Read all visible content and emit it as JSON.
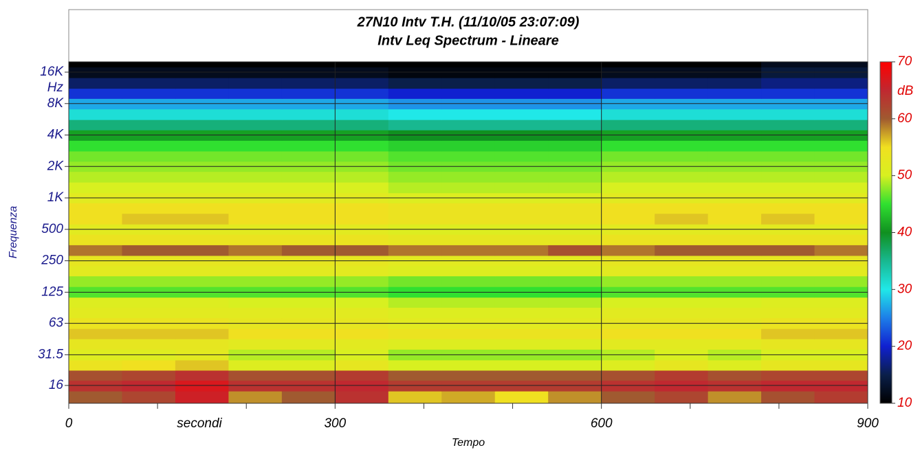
{
  "chart_data": {
    "type": "heatmap",
    "title": "27N10 Intv T.H. (11/10/05 23:07:09)",
    "subtitle": "Intv Leq Spectrum - Lineare",
    "x_label": "Tempo",
    "x_unit": "secondi",
    "y_label": "Frequenza",
    "y_unit": "Hz",
    "xlim": [
      0,
      900
    ],
    "xticks": [
      0,
      300,
      600,
      900
    ],
    "xminor": [
      100,
      200,
      400,
      500,
      700,
      800
    ],
    "xgrid": [
      300,
      600
    ],
    "ylim": [
      10.8,
      20080
    ],
    "log_y": true,
    "yticks": [
      {
        "value": 16000,
        "label": "16K"
      },
      {
        "value": 8000,
        "label": "8K"
      },
      {
        "value": 4000,
        "label": "4K"
      },
      {
        "value": 2000,
        "label": "2K"
      },
      {
        "value": 1000,
        "label": "1K"
      },
      500,
      250,
      125,
      63,
      31.5,
      16
    ],
    "grid": true,
    "x": [
      0,
      60,
      120,
      180,
      240,
      300,
      360,
      420,
      480,
      540,
      600,
      660,
      720,
      780,
      840
    ],
    "y": [
      12.5,
      16,
      20,
      25,
      31.5,
      40,
      50,
      63,
      80,
      100,
      125,
      160,
      200,
      250,
      315,
      400,
      500,
      630,
      800,
      1000,
      1250,
      1600,
      2000,
      2500,
      3150,
      4000,
      5000,
      6300,
      8000,
      10000,
      12500,
      16000,
      20000
    ],
    "z": [
      [
        60,
        62,
        66,
        58,
        60,
        64,
        56,
        57,
        55,
        58,
        60,
        62,
        58,
        61,
        63
      ],
      [
        64,
        65,
        67,
        64,
        64,
        65,
        63,
        63,
        63,
        63,
        64,
        65,
        64,
        65,
        65
      ],
      [
        61,
        62,
        64,
        61,
        61,
        63,
        60,
        60,
        60,
        60,
        61,
        63,
        61,
        62,
        62
      ],
      [
        54,
        55,
        56,
        51,
        51,
        53,
        50,
        50,
        50,
        50,
        51,
        53,
        51,
        53,
        53
      ],
      [
        51,
        51,
        52,
        49,
        49,
        50,
        48,
        48,
        48,
        48,
        49,
        50,
        49,
        50,
        50
      ],
      [
        53,
        53,
        53,
        52,
        52,
        52,
        51,
        51,
        51,
        51,
        52,
        52,
        52,
        53,
        53
      ],
      [
        56,
        56,
        56,
        55,
        55,
        55,
        54,
        54,
        54,
        54,
        55,
        55,
        55,
        56,
        56
      ],
      [
        54,
        54,
        54,
        53,
        53,
        53,
        52,
        52,
        52,
        52,
        53,
        53,
        53,
        54,
        54
      ],
      [
        52,
        52,
        52,
        52,
        52,
        52,
        51,
        51,
        51,
        51,
        52,
        52,
        52,
        52,
        52
      ],
      [
        51,
        51,
        51,
        50,
        50,
        50,
        49,
        49,
        49,
        49,
        50,
        50,
        50,
        51,
        51
      ],
      [
        46,
        46,
        46,
        46,
        46,
        46,
        45,
        45,
        45,
        45,
        46,
        46,
        46,
        46,
        46
      ],
      [
        48,
        48,
        48,
        48,
        48,
        48,
        47,
        47,
        47,
        47,
        48,
        48,
        48,
        48,
        48
      ],
      [
        52,
        52,
        52,
        52,
        52,
        52,
        51,
        51,
        51,
        51,
        52,
        52,
        52,
        52,
        52
      ],
      [
        53,
        53,
        53,
        53,
        53,
        53,
        52,
        52,
        52,
        52,
        53,
        53,
        53,
        53,
        53
      ],
      [
        59,
        60,
        60,
        59,
        60,
        60,
        59,
        59,
        59,
        61,
        59,
        60,
        60,
        60,
        59
      ],
      [
        54,
        54,
        54,
        54,
        54,
        54,
        53,
        53,
        53,
        53,
        54,
        54,
        54,
        54,
        54
      ],
      [
        52,
        52,
        52,
        52,
        52,
        52,
        51,
        51,
        51,
        51,
        52,
        52,
        52,
        52,
        52
      ],
      [
        55,
        56,
        56,
        55,
        55,
        55,
        54,
        54,
        54,
        54,
        55,
        56,
        55,
        56,
        55
      ],
      [
        55,
        55,
        55,
        55,
        55,
        55,
        54,
        54,
        54,
        54,
        55,
        55,
        55,
        55,
        55
      ],
      [
        52,
        52,
        52,
        52,
        52,
        52,
        51,
        51,
        51,
        51,
        52,
        52,
        52,
        52,
        52
      ],
      [
        50,
        50,
        50,
        50,
        50,
        50,
        49,
        49,
        49,
        49,
        50,
        50,
        50,
        50,
        50
      ],
      [
        49,
        49,
        49,
        49,
        49,
        49,
        48,
        48,
        48,
        48,
        49,
        49,
        49,
        49,
        49
      ],
      [
        48,
        48,
        48,
        48,
        48,
        48,
        47,
        47,
        47,
        47,
        48,
        48,
        48,
        48,
        48
      ],
      [
        47,
        47,
        47,
        47,
        47,
        47,
        46,
        46,
        46,
        46,
        47,
        47,
        47,
        47,
        47
      ],
      [
        45,
        45,
        45,
        45,
        45,
        45,
        44,
        44,
        44,
        44,
        45,
        45,
        45,
        45,
        45
      ],
      [
        41,
        41,
        41,
        41,
        41,
        41,
        40,
        40,
        40,
        40,
        41,
        41,
        41,
        41,
        41
      ],
      [
        36,
        36,
        36,
        36,
        36,
        36,
        35,
        35,
        35,
        35,
        36,
        36,
        36,
        36,
        36
      ],
      [
        31,
        31,
        31,
        31,
        31,
        31,
        30,
        30,
        30,
        30,
        31,
        31,
        31,
        31,
        31
      ],
      [
        27,
        27,
        27,
        27,
        27,
        27,
        26,
        26,
        26,
        26,
        27,
        27,
        27,
        27,
        27
      ],
      [
        21,
        21,
        21,
        21,
        21,
        21,
        20,
        20,
        20,
        20,
        21,
        21,
        21,
        21,
        21
      ],
      [
        16,
        16,
        16,
        16,
        16,
        16,
        15,
        15,
        15,
        15,
        16,
        16,
        16,
        17,
        17
      ],
      [
        12,
        12,
        12,
        12,
        12,
        12,
        11,
        11,
        11,
        11,
        12,
        12,
        12,
        14,
        14
      ],
      [
        10,
        10,
        10,
        10,
        10,
        10,
        10,
        10,
        10,
        10,
        10,
        10,
        10,
        12,
        12
      ]
    ],
    "colorbar": {
      "unit": "dB",
      "lim": [
        10,
        70
      ],
      "ticks": [
        10,
        20,
        30,
        40,
        50,
        60,
        70
      ]
    },
    "colorscale": [
      [
        10,
        "#000000"
      ],
      [
        15,
        "#0a1f4a"
      ],
      [
        20,
        "#1020d0"
      ],
      [
        25,
        "#1d7ee8"
      ],
      [
        30,
        "#20e8e8"
      ],
      [
        35,
        "#18b890"
      ],
      [
        40,
        "#109020"
      ],
      [
        45,
        "#30e030"
      ],
      [
        50,
        "#d8f020"
      ],
      [
        55,
        "#f0e020"
      ],
      [
        60,
        "#a05a30"
      ],
      [
        65,
        "#c02830"
      ],
      [
        70,
        "#ff0000"
      ]
    ]
  }
}
